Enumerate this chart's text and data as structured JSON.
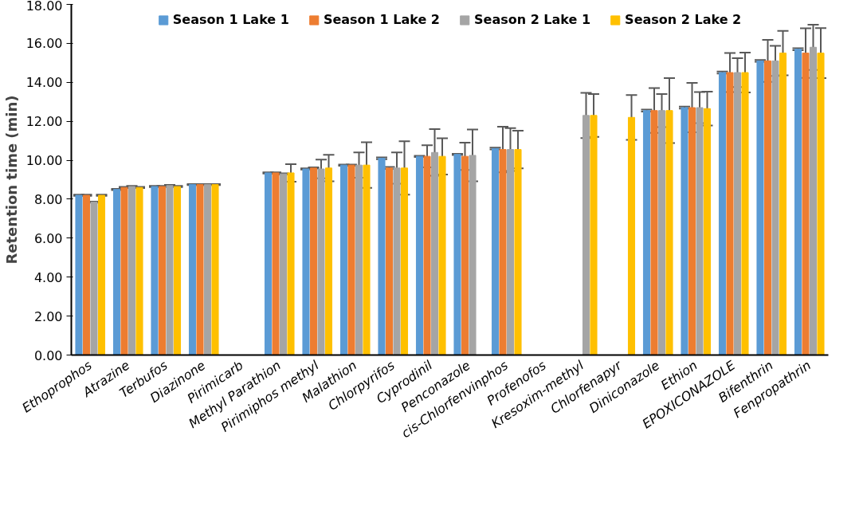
{
  "chart_data": {
    "type": "bar",
    "ylabel": "Retention time (min)",
    "categories": [
      "Ethoprophos",
      "Atrazine",
      "Terbufos",
      "Diazinone",
      "Pirimicarb",
      "Methyl Parathion",
      "Pirimiphos methyl",
      "Malathion",
      "Chlorpyrifos",
      "Cyprodinil",
      "Penconazole",
      "cis-Chlorfenvinphos",
      "Profenofos",
      "Kresoxim-methyl",
      "Chlorfenapyr",
      "Diniconazole",
      "Ethion",
      "EPOXICONAZOLE",
      "Bifenthrin",
      "Fenpropathrin"
    ],
    "series": [
      {
        "name": "Season 1 Lake 1",
        "color": "#5b9bd5",
        "values": [
          8.2,
          8.5,
          8.65,
          8.75,
          null,
          9.35,
          9.55,
          9.75,
          10.1,
          10.2,
          10.3,
          10.6,
          null,
          null,
          null,
          12.55,
          12.7,
          14.5,
          15.1,
          15.7
        ],
        "errors": [
          0.03,
          0.03,
          0.03,
          0.03,
          null,
          0.03,
          0.03,
          0.03,
          0.05,
          0.03,
          0.03,
          0.05,
          null,
          null,
          null,
          0.05,
          0.05,
          0.05,
          0.05,
          0.05
        ]
      },
      {
        "name": "Season 1 Lake 2",
        "color": "#ed7d31",
        "values": [
          8.2,
          8.6,
          8.65,
          8.75,
          null,
          9.35,
          9.6,
          9.75,
          9.6,
          10.2,
          10.2,
          10.55,
          null,
          null,
          null,
          12.55,
          12.7,
          14.5,
          15.1,
          15.5
        ],
        "errors": [
          0.03,
          0.03,
          0.03,
          0.03,
          null,
          0.03,
          0.03,
          0.03,
          0.05,
          0.57,
          0.7,
          1.17,
          null,
          null,
          null,
          1.15,
          1.27,
          1.0,
          1.08,
          1.27
        ]
      },
      {
        "name": "Season 2 Lake 1",
        "color": "#a5a5a5",
        "values": [
          7.85,
          8.65,
          8.7,
          8.75,
          null,
          9.3,
          9.55,
          9.75,
          9.6,
          10.4,
          10.25,
          10.55,
          null,
          12.3,
          null,
          12.55,
          12.7,
          14.5,
          15.1,
          15.8
        ],
        "errors": [
          0.03,
          0.03,
          0.03,
          0.03,
          null,
          0.03,
          0.48,
          0.65,
          0.8,
          1.2,
          1.33,
          1.1,
          null,
          1.16,
          null,
          0.85,
          0.8,
          0.74,
          0.77,
          1.16
        ]
      },
      {
        "name": "Season 2 Lake 2",
        "color": "#ffc000",
        "values": [
          8.2,
          8.6,
          8.65,
          8.75,
          null,
          9.35,
          9.6,
          9.75,
          9.6,
          10.2,
          null,
          10.55,
          null,
          12.3,
          12.2,
          12.55,
          12.65,
          14.5,
          15.5,
          15.5
        ],
        "errors": [
          0.03,
          0.03,
          0.03,
          0.03,
          null,
          0.45,
          0.68,
          1.17,
          1.37,
          0.93,
          null,
          0.97,
          null,
          1.1,
          1.15,
          1.67,
          0.87,
          1.02,
          1.14,
          1.28
        ]
      }
    ],
    "ylim": [
      0,
      18
    ],
    "yticks": [
      {
        "value": 0,
        "label": "0.00"
      },
      {
        "value": 2,
        "label": "2.00"
      },
      {
        "value": 4,
        "label": "4.00"
      },
      {
        "value": 6,
        "label": "6.00"
      },
      {
        "value": 8,
        "label": "8.00"
      },
      {
        "value": 10,
        "label": "10.00"
      },
      {
        "value": 12,
        "label": "12.00"
      },
      {
        "value": 14,
        "label": "14.00"
      },
      {
        "value": 16,
        "label": "16.00"
      },
      {
        "value": 18,
        "label": "18.00"
      }
    ],
    "grid": false,
    "legend": "top"
  }
}
